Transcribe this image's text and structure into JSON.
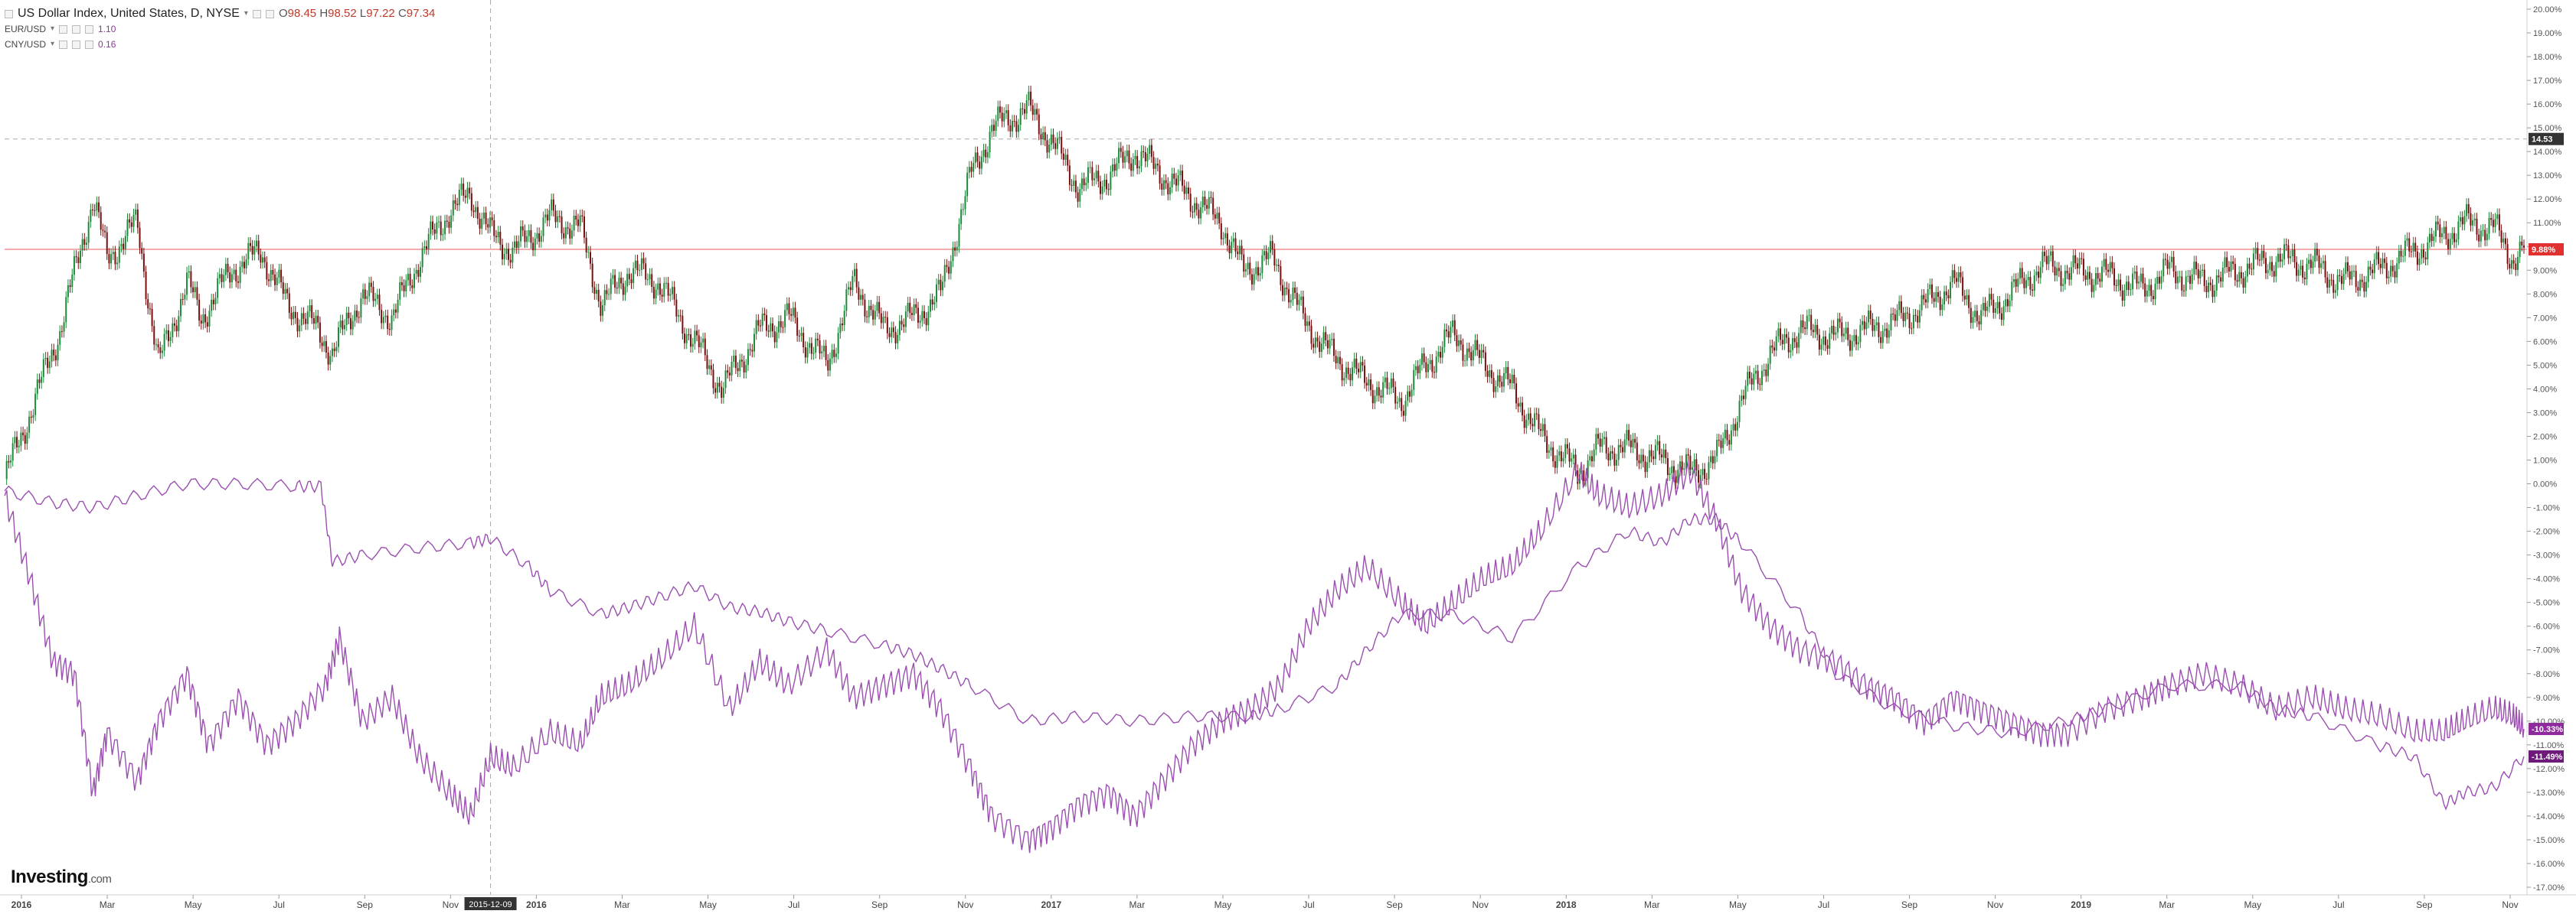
{
  "legend": {
    "main": {
      "title": "US Dollar Index, United States, D, NYSE",
      "open_label": "O",
      "open": "98.45",
      "high_label": "H",
      "high": "98.52",
      "low_label": "L",
      "low": "97.22",
      "close_label": "C",
      "close": "97.34"
    },
    "overlays": [
      {
        "name": "EUR/USD",
        "value": "1.10"
      },
      {
        "name": "CNY/USD",
        "value": "0.16"
      }
    ]
  },
  "logo": {
    "name": "Investing",
    "domain": ".com"
  },
  "cursor_date_label": "2015-12-09",
  "price_labels": {
    "crosshair": "14.53",
    "last": "9.88%",
    "eur": "-10.33%",
    "cny": "-11.49%"
  },
  "colors": {
    "up": "#1e8b3a",
    "down": "#7a0f0f",
    "overlay": "#9b4fb0",
    "last_line": "#e85a5a",
    "grid_dashed": "#aaaaaa"
  },
  "chart_data": {
    "type": "line",
    "title": "US Dollar Index, United States, D, NYSE",
    "y_unit": "percent change",
    "ylim": [
      -17,
      20
    ],
    "y_ticks": [
      20,
      19,
      18,
      17,
      16,
      15,
      14,
      13,
      12,
      11,
      10,
      9,
      8,
      7,
      6,
      5,
      4,
      3,
      2,
      1,
      0,
      -1,
      -2,
      -3,
      -4,
      -5,
      -6,
      -7,
      -8,
      -9,
      -10,
      -11,
      -12,
      -13,
      -14,
      -15,
      -16,
      -17
    ],
    "x_ticks": [
      "2016",
      "Mar",
      "May",
      "Jul",
      "Sep",
      "Nov",
      "2016",
      "Mar",
      "May",
      "Jul",
      "Sep",
      "Nov",
      "2017",
      "Mar",
      "May",
      "Jul",
      "Sep",
      "Nov",
      "2018",
      "Mar",
      "May",
      "Jul",
      "Sep",
      "Nov",
      "2019",
      "Mar",
      "May",
      "Jul",
      "Sep",
      "Nov"
    ],
    "x_start": "2015-01-02",
    "x_end": "2019-11-05",
    "series": [
      {
        "name": "US Dollar Index",
        "style": "candlestick",
        "x": [
          "2015-01-02",
          "2015-01-20",
          "2015-02-10",
          "2015-03-05",
          "2015-03-15",
          "2015-04-05",
          "2015-04-20",
          "2015-05-10",
          "2015-05-20",
          "2015-06-10",
          "2015-07-01",
          "2015-07-20",
          "2015-08-10",
          "2015-08-20",
          "2015-09-10",
          "2015-10-01",
          "2015-10-20",
          "2015-11-10",
          "2015-11-25",
          "2015-12-09",
          "2015-12-25",
          "2016-01-20",
          "2016-02-10",
          "2016-02-25",
          "2016-03-15",
          "2016-04-05",
          "2016-04-30",
          "2016-05-20",
          "2016-06-15",
          "2016-07-05",
          "2016-08-01",
          "2016-08-20",
          "2016-09-10",
          "2016-10-01",
          "2016-10-20",
          "2016-11-10",
          "2016-11-25",
          "2016-12-20",
          "2017-01-05",
          "2017-01-25",
          "2017-02-15",
          "2017-03-05",
          "2017-03-25",
          "2017-04-15",
          "2017-05-05",
          "2017-05-20",
          "2017-06-10",
          "2017-07-01",
          "2017-07-20",
          "2017-08-10",
          "2017-09-08",
          "2017-09-25",
          "2017-10-15",
          "2017-11-05",
          "2017-11-25",
          "2017-12-15",
          "2018-01-10",
          "2018-01-25",
          "2018-02-15",
          "2018-03-10",
          "2018-03-30",
          "2018-04-17",
          "2018-05-05",
          "2018-05-25",
          "2018-06-15",
          "2018-07-10",
          "2018-08-01",
          "2018-08-20",
          "2018-09-10",
          "2018-10-01",
          "2018-10-20",
          "2018-11-10",
          "2018-12-01",
          "2018-12-20",
          "2019-01-15",
          "2019-02-10",
          "2019-03-01",
          "2019-03-25",
          "2019-04-20",
          "2019-05-15",
          "2019-06-10",
          "2019-07-01",
          "2019-07-25",
          "2019-08-20",
          "2019-09-10",
          "2019-09-25",
          "2019-10-15",
          "2019-10-28",
          "2019-11-05"
        ],
        "values": [
          0.2,
          3.0,
          6.5,
          12.0,
          9.5,
          11.0,
          5.0,
          8.5,
          7.0,
          9.0,
          9.8,
          7.5,
          6.5,
          5.5,
          8.0,
          7.0,
          9.5,
          11.5,
          12.2,
          10.5,
          9.8,
          11.2,
          10.8,
          7.5,
          9.0,
          8.5,
          6.0,
          4.0,
          6.5,
          7.0,
          5.0,
          8.5,
          6.5,
          7.0,
          8.0,
          13.0,
          15.0,
          15.8,
          14.5,
          12.5,
          13.0,
          14.0,
          13.0,
          12.0,
          11.0,
          9.0,
          9.5,
          7.0,
          5.5,
          4.5,
          3.5,
          5.0,
          6.3,
          5.0,
          4.0,
          2.0,
          0.5,
          1.5,
          1.5,
          1.0,
          0.5,
          1.0,
          3.5,
          5.5,
          6.5,
          6.2,
          6.5,
          6.8,
          7.5,
          8.5,
          7.0,
          8.0,
          9.2,
          9.0,
          8.8,
          8.2,
          9.0,
          8.5,
          9.0,
          9.5,
          9.2,
          8.5,
          9.0,
          9.8,
          10.5,
          11.0,
          10.8,
          9.5,
          9.88
        ]
      },
      {
        "name": "EUR/USD",
        "style": "line",
        "x": [
          "2015-01-02",
          "2015-01-20",
          "2015-02-05",
          "2015-02-20",
          "2015-03-05",
          "2015-03-15",
          "2015-04-05",
          "2015-04-20",
          "2015-05-10",
          "2015-05-25",
          "2015-06-15",
          "2015-07-05",
          "2015-07-25",
          "2015-08-15",
          "2015-08-25",
          "2015-09-10",
          "2015-10-01",
          "2015-10-20",
          "2015-11-10",
          "2015-11-25",
          "2015-12-09",
          "2015-12-25",
          "2016-01-20",
          "2016-02-10",
          "2016-02-25",
          "2016-03-15",
          "2016-04-05",
          "2016-04-30",
          "2016-05-25",
          "2016-06-15",
          "2016-07-05",
          "2016-08-01",
          "2016-08-20",
          "2016-09-10",
          "2016-10-01",
          "2016-10-20",
          "2016-11-10",
          "2016-11-25",
          "2016-12-20",
          "2017-01-05",
          "2017-01-25",
          "2017-02-15",
          "2017-03-05",
          "2017-03-25",
          "2017-04-15",
          "2017-05-05",
          "2017-05-25",
          "2017-06-15",
          "2017-07-05",
          "2017-07-25",
          "2017-08-15",
          "2017-09-08",
          "2017-09-25",
          "2017-10-15",
          "2017-11-05",
          "2017-11-25",
          "2017-12-15",
          "2018-01-10",
          "2018-01-25",
          "2018-02-15",
          "2018-03-10",
          "2018-03-30",
          "2018-04-17",
          "2018-05-05",
          "2018-05-25",
          "2018-06-15",
          "2018-07-10",
          "2018-08-01",
          "2018-08-20",
          "2018-09-10",
          "2018-10-01",
          "2018-10-20",
          "2018-11-10",
          "2018-12-01",
          "2018-12-20",
          "2019-01-15",
          "2019-02-10",
          "2019-03-01",
          "2019-03-25",
          "2019-04-20",
          "2019-05-15",
          "2019-06-10",
          "2019-07-01",
          "2019-07-25",
          "2019-08-20",
          "2019-09-10",
          "2019-09-25",
          "2019-10-15",
          "2019-10-28",
          "2019-11-05"
        ],
        "values": [
          -0.5,
          -4.0,
          -7.5,
          -8.0,
          -13.0,
          -10.5,
          -12.5,
          -10.0,
          -8.0,
          -11.0,
          -9.0,
          -11.0,
          -10.0,
          -8.5,
          -6.5,
          -10.0,
          -9.0,
          -11.5,
          -13.0,
          -14.0,
          -11.5,
          -12.0,
          -10.5,
          -11.0,
          -9.0,
          -8.5,
          -7.5,
          -6.0,
          -9.5,
          -7.5,
          -8.5,
          -7.0,
          -9.0,
          -8.5,
          -8.0,
          -9.5,
          -12.0,
          -14.0,
          -15.0,
          -14.5,
          -13.5,
          -13.0,
          -14.0,
          -12.5,
          -11.0,
          -10.0,
          -9.5,
          -8.5,
          -6.0,
          -4.5,
          -3.5,
          -5.0,
          -6.0,
          -5.0,
          -4.0,
          -3.5,
          -2.0,
          0.5,
          -0.5,
          -1.0,
          -0.5,
          0.5,
          -1.5,
          -4.5,
          -6.0,
          -7.0,
          -7.5,
          -8.5,
          -9.0,
          -10.0,
          -9.0,
          -9.5,
          -10.0,
          -10.5,
          -10.5,
          -9.5,
          -9.0,
          -8.5,
          -8.0,
          -8.5,
          -9.5,
          -9.0,
          -9.5,
          -9.8,
          -10.5,
          -10.5,
          -10.0,
          -9.5,
          -9.8,
          -10.33
        ]
      },
      {
        "name": "CNY/USD",
        "style": "line",
        "x": [
          "2015-01-02",
          "2015-02-05",
          "2015-03-05",
          "2015-04-05",
          "2015-05-10",
          "2015-06-15",
          "2015-07-25",
          "2015-08-12",
          "2015-08-20",
          "2015-09-10",
          "2015-10-20",
          "2015-11-25",
          "2015-12-09",
          "2016-01-05",
          "2016-01-20",
          "2016-02-25",
          "2016-03-15",
          "2016-04-05",
          "2016-04-30",
          "2016-05-25",
          "2016-06-15",
          "2016-07-05",
          "2016-08-01",
          "2016-09-10",
          "2016-10-01",
          "2016-10-20",
          "2016-11-10",
          "2016-12-20",
          "2017-01-25",
          "2017-03-05",
          "2017-04-15",
          "2017-05-25",
          "2017-06-15",
          "2017-07-25",
          "2017-08-15",
          "2017-09-08",
          "2017-10-15",
          "2017-11-25",
          "2018-01-10",
          "2018-02-15",
          "2018-03-10",
          "2018-03-30",
          "2018-04-17",
          "2018-05-05",
          "2018-06-15",
          "2018-07-10",
          "2018-08-20",
          "2018-10-01",
          "2018-11-10",
          "2018-12-20",
          "2019-01-15",
          "2019-03-01",
          "2019-04-20",
          "2019-05-15",
          "2019-06-10",
          "2019-07-25",
          "2019-08-20",
          "2019-09-10",
          "2019-09-25",
          "2019-10-15",
          "2019-11-05"
        ],
        "values": [
          -0.3,
          -0.8,
          -1.0,
          -0.5,
          0.0,
          0.0,
          -0.1,
          -0.1,
          -3.3,
          -3.0,
          -2.7,
          -2.5,
          -2.3,
          -3.5,
          -4.5,
          -5.5,
          -5.2,
          -4.8,
          -4.3,
          -5.2,
          -5.4,
          -5.8,
          -6.2,
          -6.8,
          -7.2,
          -7.8,
          -8.5,
          -10.0,
          -9.8,
          -10.0,
          -9.8,
          -9.8,
          -9.5,
          -8.5,
          -7.0,
          -5.5,
          -5.5,
          -6.5,
          -3.5,
          -2.0,
          -2.5,
          -1.5,
          -1.5,
          -2.5,
          -5.5,
          -8.0,
          -9.5,
          -10.2,
          -10.5,
          -10.0,
          -9.5,
          -8.5,
          -8.5,
          -9.5,
          -9.8,
          -11.0,
          -11.5,
          -13.5,
          -13.0,
          -12.8,
          -11.49
        ]
      }
    ]
  }
}
